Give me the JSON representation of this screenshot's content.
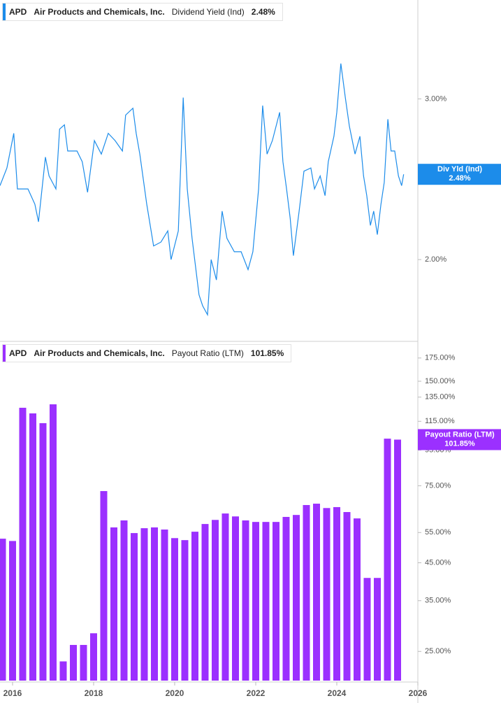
{
  "chart_data": [
    {
      "type": "line",
      "ticker": "APD",
      "company": "Air Products and Chemicals, Inc.",
      "log_scale": true,
      "xlim": [
        2015.69,
        2026.0
      ],
      "ylim": [
        1.63,
        3.85
      ],
      "yticks": [
        {
          "value": 2,
          "label": "2.00%"
        },
        {
          "value": 3,
          "label": "3.00%"
        }
      ],
      "x": [
        2015.69,
        2015.86,
        2016.03,
        2016.12,
        2016.38,
        2016.55,
        2016.64,
        2016.81,
        2016.9,
        2017.07,
        2017.16,
        2017.28,
        2017.36,
        2017.59,
        2017.72,
        2017.85,
        2018.02,
        2018.19,
        2018.36,
        2018.53,
        2018.71,
        2018.79,
        2018.97,
        2019.05,
        2019.14,
        2019.31,
        2019.48,
        2019.66,
        2019.83,
        2019.91,
        2020.09,
        2020.21,
        2020.31,
        2020.43,
        2020.6,
        2020.69,
        2020.81,
        2020.9,
        2021.03,
        2021.17,
        2021.29,
        2021.47,
        2021.64,
        2021.81,
        2021.93,
        2022.07,
        2022.17,
        2022.28,
        2022.41,
        2022.59,
        2022.67,
        2022.76,
        2022.85,
        2022.93,
        2023.07,
        2023.19,
        2023.36,
        2023.45,
        2023.59,
        2023.71,
        2023.79,
        2023.93,
        2024.0,
        2024.1,
        2024.21,
        2024.31,
        2024.45,
        2024.57,
        2024.66,
        2024.74,
        2024.83,
        2024.91,
        2025.0,
        2025.09,
        2025.17,
        2025.26,
        2025.34,
        2025.43,
        2025.52,
        2025.6,
        2025.65
      ],
      "series": [
        {
          "name": "Dividend Yield (Ind)",
          "marker_label": "Div Yld (Ind)",
          "color": "#1c8cea",
          "values": [
            2.41,
            2.52,
            2.75,
            2.39,
            2.39,
            2.3,
            2.2,
            2.59,
            2.47,
            2.39,
            2.78,
            2.81,
            2.63,
            2.63,
            2.56,
            2.37,
            2.7,
            2.61,
            2.75,
            2.7,
            2.63,
            2.88,
            2.93,
            2.75,
            2.61,
            2.3,
            2.07,
            2.09,
            2.15,
            2.0,
            2.15,
            3.01,
            2.39,
            2.11,
            1.83,
            1.78,
            1.74,
            2.0,
            1.9,
            2.26,
            2.11,
            2.04,
            2.04,
            1.95,
            2.04,
            2.39,
            2.95,
            2.61,
            2.7,
            2.9,
            2.56,
            2.39,
            2.22,
            2.02,
            2.26,
            2.5,
            2.52,
            2.39,
            2.47,
            2.35,
            2.56,
            2.73,
            2.9,
            3.28,
            3.01,
            2.8,
            2.61,
            2.73,
            2.47,
            2.35,
            2.18,
            2.26,
            2.13,
            2.3,
            2.43,
            2.85,
            2.63,
            2.63,
            2.47,
            2.41,
            2.48
          ],
          "value_labels": [
            null,
            null,
            null,
            null,
            null,
            null,
            null,
            null,
            null,
            null,
            null,
            null,
            null,
            null,
            null,
            null,
            null,
            null,
            null,
            null,
            null,
            null,
            null,
            null,
            null,
            null,
            null,
            null,
            null,
            null,
            null,
            null,
            null,
            null,
            null,
            null,
            null,
            null,
            null,
            null,
            null,
            null,
            null,
            null,
            null,
            null,
            null,
            null,
            null,
            null,
            null,
            null,
            null,
            null,
            null,
            null,
            null,
            null,
            null,
            null,
            null,
            null,
            null,
            null,
            null,
            null,
            null,
            null,
            null,
            null,
            null,
            null,
            null,
            null,
            null,
            null,
            null,
            null,
            null,
            null,
            "2.48%"
          ]
        }
      ]
    },
    {
      "type": "bar",
      "ticker": "APD",
      "company": "Air Products and Chemicals, Inc.",
      "log_scale": true,
      "xlim": [
        2015.69,
        2026.0
      ],
      "ylim": [
        20.6,
        193.6
      ],
      "xticks": [
        2016,
        2018,
        2020,
        2022,
        2024,
        2026
      ],
      "yticks": [
        {
          "value": 25,
          "label": "25.00%"
        },
        {
          "value": 35,
          "label": "35.00%"
        },
        {
          "value": 45,
          "label": "45.00%"
        },
        {
          "value": 55,
          "label": "55.00%"
        },
        {
          "value": 75,
          "label": "75.00%"
        },
        {
          "value": 95,
          "label": "95.00%"
        },
        {
          "value": 115,
          "label": "115.00%"
        },
        {
          "value": 135,
          "label": "135.00%"
        },
        {
          "value": 150,
          "label": "150.00%"
        },
        {
          "value": 175,
          "label": "175.00%"
        }
      ],
      "x": [
        2015.75,
        2016.0,
        2016.25,
        2016.5,
        2016.75,
        2017.0,
        2017.25,
        2017.5,
        2017.75,
        2018.0,
        2018.25,
        2018.5,
        2018.75,
        2019.0,
        2019.25,
        2019.5,
        2019.75,
        2020.0,
        2020.25,
        2020.5,
        2020.75,
        2021.0,
        2021.25,
        2021.5,
        2021.75,
        2022.0,
        2022.25,
        2022.5,
        2022.75,
        2023.0,
        2023.25,
        2023.5,
        2023.75,
        2024.0,
        2024.25,
        2024.5,
        2024.75,
        2025.0,
        2025.25,
        2025.5
      ],
      "series": [
        {
          "name": "Payout Ratio (LTM)",
          "marker_label": "Payout Ratio (LTM)",
          "color": "#9b30ff",
          "values": [
            52.8,
            52.0,
            125.8,
            121.2,
            113.6,
            128.7,
            23.4,
            26.1,
            26.1,
            28.2,
            72.4,
            56.9,
            59.6,
            54.8,
            56.6,
            56.9,
            56.1,
            53.0,
            52.3,
            55.3,
            58.2,
            59.8,
            62.4,
            61.2,
            59.6,
            59.0,
            59.0,
            59.0,
            61.0,
            61.8,
            66.0,
            66.6,
            64.7,
            65.1,
            63.0,
            60.4,
            40.7,
            40.7,
            102.5,
            101.85
          ],
          "value_labels": [
            null,
            null,
            null,
            null,
            null,
            null,
            null,
            null,
            null,
            null,
            null,
            null,
            null,
            null,
            null,
            null,
            null,
            null,
            null,
            null,
            null,
            null,
            null,
            null,
            null,
            null,
            null,
            null,
            null,
            null,
            null,
            null,
            null,
            null,
            null,
            null,
            null,
            null,
            null,
            "101.85%"
          ]
        }
      ]
    }
  ]
}
